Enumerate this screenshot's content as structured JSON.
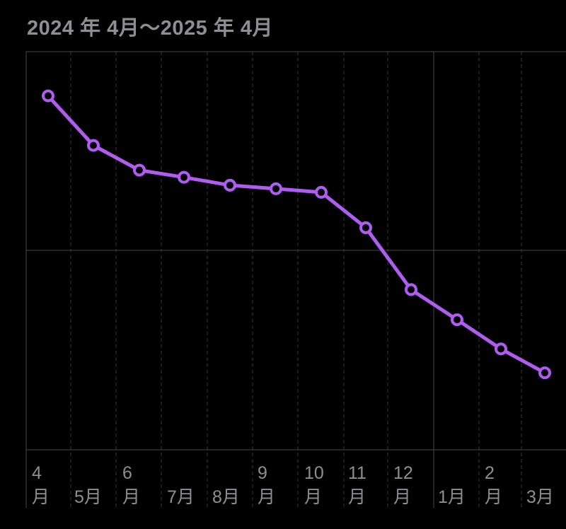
{
  "header": {
    "date_range": "2024 年 4月〜2025 年 4月"
  },
  "chart_data": {
    "type": "line",
    "title": "",
    "xlabel": "",
    "ylabel": "",
    "categories": [
      "4月",
      "5月",
      "6月",
      "7月",
      "8月",
      "9月",
      "10月",
      "11月",
      "12月",
      "1月",
      "2月",
      "3月"
    ],
    "tick_labels": [
      [
        "4",
        "月"
      ],
      [
        "",
        "5月"
      ],
      [
        "6",
        "月"
      ],
      [
        "",
        "7月"
      ],
      [
        "",
        "8月"
      ],
      [
        "9",
        "月"
      ],
      [
        "10",
        "月"
      ],
      [
        "11",
        "月"
      ],
      [
        "12",
        "月"
      ],
      [
        "",
        "1月"
      ],
      [
        "2",
        "月"
      ],
      [
        "",
        "3月"
      ]
    ],
    "series": [
      {
        "values": [
          80.0,
          74.4,
          71.6,
          70.8,
          69.9,
          69.5,
          69.1,
          65.1,
          58.1,
          54.7,
          51.4,
          48.7
        ]
      }
    ],
    "ylim": [
      40,
      85
    ],
    "y_axis_labels": "hidden",
    "grid": true,
    "legend": "none",
    "colors": {
      "line": "#b05cf0",
      "marker_fill": "#000000",
      "grid_dashed": "#3a3a3c",
      "grid_solid": "#48484a",
      "text": "#8e8e93"
    }
  }
}
